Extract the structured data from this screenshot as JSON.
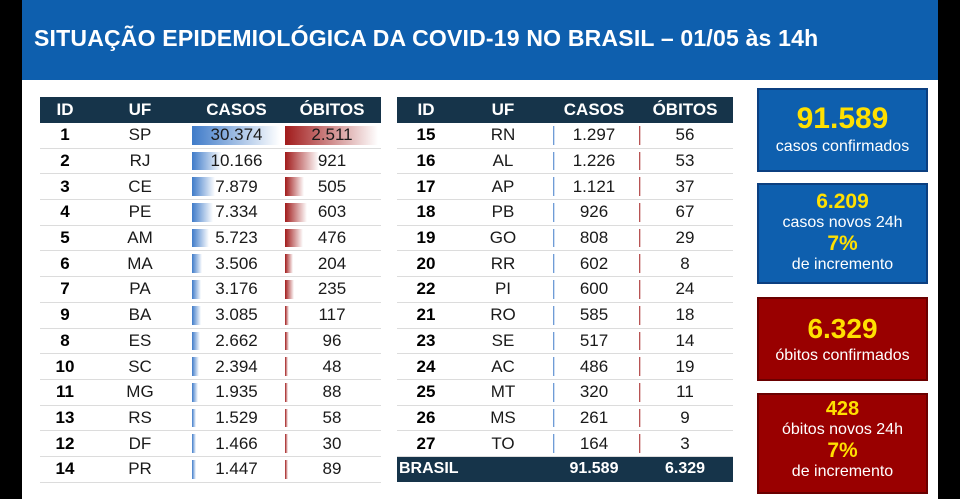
{
  "title": "SITUAÇÃO EPIDEMIOLÓGICA DA COVID-19 NO BRASIL – 01/05 às 14h",
  "headers": {
    "id": "ID",
    "uf": "UF",
    "casos": "CASOS",
    "obitos": "ÓBITOS"
  },
  "left_rows": [
    {
      "id": "1",
      "uf": "SP",
      "casos": "30.374",
      "obitos": "2.511",
      "casos_n": 30374,
      "obitos_n": 2511
    },
    {
      "id": "2",
      "uf": "RJ",
      "casos": "10.166",
      "obitos": "921",
      "casos_n": 10166,
      "obitos_n": 921
    },
    {
      "id": "3",
      "uf": "CE",
      "casos": "7.879",
      "obitos": "505",
      "casos_n": 7879,
      "obitos_n": 505
    },
    {
      "id": "4",
      "uf": "PE",
      "casos": "7.334",
      "obitos": "603",
      "casos_n": 7334,
      "obitos_n": 603
    },
    {
      "id": "5",
      "uf": "AM",
      "casos": "5.723",
      "obitos": "476",
      "casos_n": 5723,
      "obitos_n": 476
    },
    {
      "id": "6",
      "uf": "MA",
      "casos": "3.506",
      "obitos": "204",
      "casos_n": 3506,
      "obitos_n": 204
    },
    {
      "id": "7",
      "uf": "PA",
      "casos": "3.176",
      "obitos": "235",
      "casos_n": 3176,
      "obitos_n": 235
    },
    {
      "id": "9",
      "uf": "BA",
      "casos": "3.085",
      "obitos": "117",
      "casos_n": 3085,
      "obitos_n": 117
    },
    {
      "id": "8",
      "uf": "ES",
      "casos": "2.662",
      "obitos": "96",
      "casos_n": 2662,
      "obitos_n": 96
    },
    {
      "id": "10",
      "uf": "SC",
      "casos": "2.394",
      "obitos": "48",
      "casos_n": 2394,
      "obitos_n": 48
    },
    {
      "id": "11",
      "uf": "MG",
      "casos": "1.935",
      "obitos": "88",
      "casos_n": 1935,
      "obitos_n": 88
    },
    {
      "id": "13",
      "uf": "RS",
      "casos": "1.529",
      "obitos": "58",
      "casos_n": 1529,
      "obitos_n": 58
    },
    {
      "id": "12",
      "uf": "DF",
      "casos": "1.466",
      "obitos": "30",
      "casos_n": 1466,
      "obitos_n": 30
    },
    {
      "id": "14",
      "uf": "PR",
      "casos": "1.447",
      "obitos": "89",
      "casos_n": 1447,
      "obitos_n": 89
    }
  ],
  "right_rows": [
    {
      "id": "15",
      "uf": "RN",
      "casos": "1.297",
      "obitos": "56",
      "casos_n": 1297,
      "obitos_n": 56
    },
    {
      "id": "16",
      "uf": "AL",
      "casos": "1.226",
      "obitos": "53",
      "casos_n": 1226,
      "obitos_n": 53
    },
    {
      "id": "17",
      "uf": "AP",
      "casos": "1.121",
      "obitos": "37",
      "casos_n": 1121,
      "obitos_n": 37
    },
    {
      "id": "18",
      "uf": "PB",
      "casos": "926",
      "obitos": "67",
      "casos_n": 926,
      "obitos_n": 67
    },
    {
      "id": "19",
      "uf": "GO",
      "casos": "808",
      "obitos": "29",
      "casos_n": 808,
      "obitos_n": 29
    },
    {
      "id": "20",
      "uf": "RR",
      "casos": "602",
      "obitos": "8",
      "casos_n": 602,
      "obitos_n": 8
    },
    {
      "id": "22",
      "uf": "PI",
      "casos": "600",
      "obitos": "24",
      "casos_n": 600,
      "obitos_n": 24
    },
    {
      "id": "21",
      "uf": "RO",
      "casos": "585",
      "obitos": "18",
      "casos_n": 585,
      "obitos_n": 18
    },
    {
      "id": "23",
      "uf": "SE",
      "casos": "517",
      "obitos": "14",
      "casos_n": 517,
      "obitos_n": 14
    },
    {
      "id": "24",
      "uf": "AC",
      "casos": "486",
      "obitos": "19",
      "casos_n": 486,
      "obitos_n": 19
    },
    {
      "id": "25",
      "uf": "MT",
      "casos": "320",
      "obitos": "11",
      "casos_n": 320,
      "obitos_n": 11
    },
    {
      "id": "26",
      "uf": "MS",
      "casos": "261",
      "obitos": "9",
      "casos_n": 261,
      "obitos_n": 9
    },
    {
      "id": "27",
      "uf": "TO",
      "casos": "164",
      "obitos": "3",
      "casos_n": 164,
      "obitos_n": 3
    }
  ],
  "total": {
    "label": "BRASIL",
    "casos": "91.589",
    "obitos": "6.329"
  },
  "summary": {
    "confirmed": {
      "value": "91.589",
      "label": "casos confirmados"
    },
    "new_cases": {
      "value": "6.209",
      "label": "casos novos 24h",
      "pct": "7%",
      "pct_label": "de incremento"
    },
    "deaths": {
      "value": "6.329",
      "label": "óbitos confirmados"
    },
    "new_deaths": {
      "value": "428",
      "label": "óbitos novos 24h",
      "pct": "7%",
      "pct_label": "de incremento"
    }
  },
  "colors": {
    "header_blue": "#0e5fae",
    "table_header": "#16344a",
    "cases_bar": "#3f7bc9",
    "deaths_bar": "#a11b1b",
    "box_red": "#990000",
    "highlight_yellow": "#ffe000"
  }
}
